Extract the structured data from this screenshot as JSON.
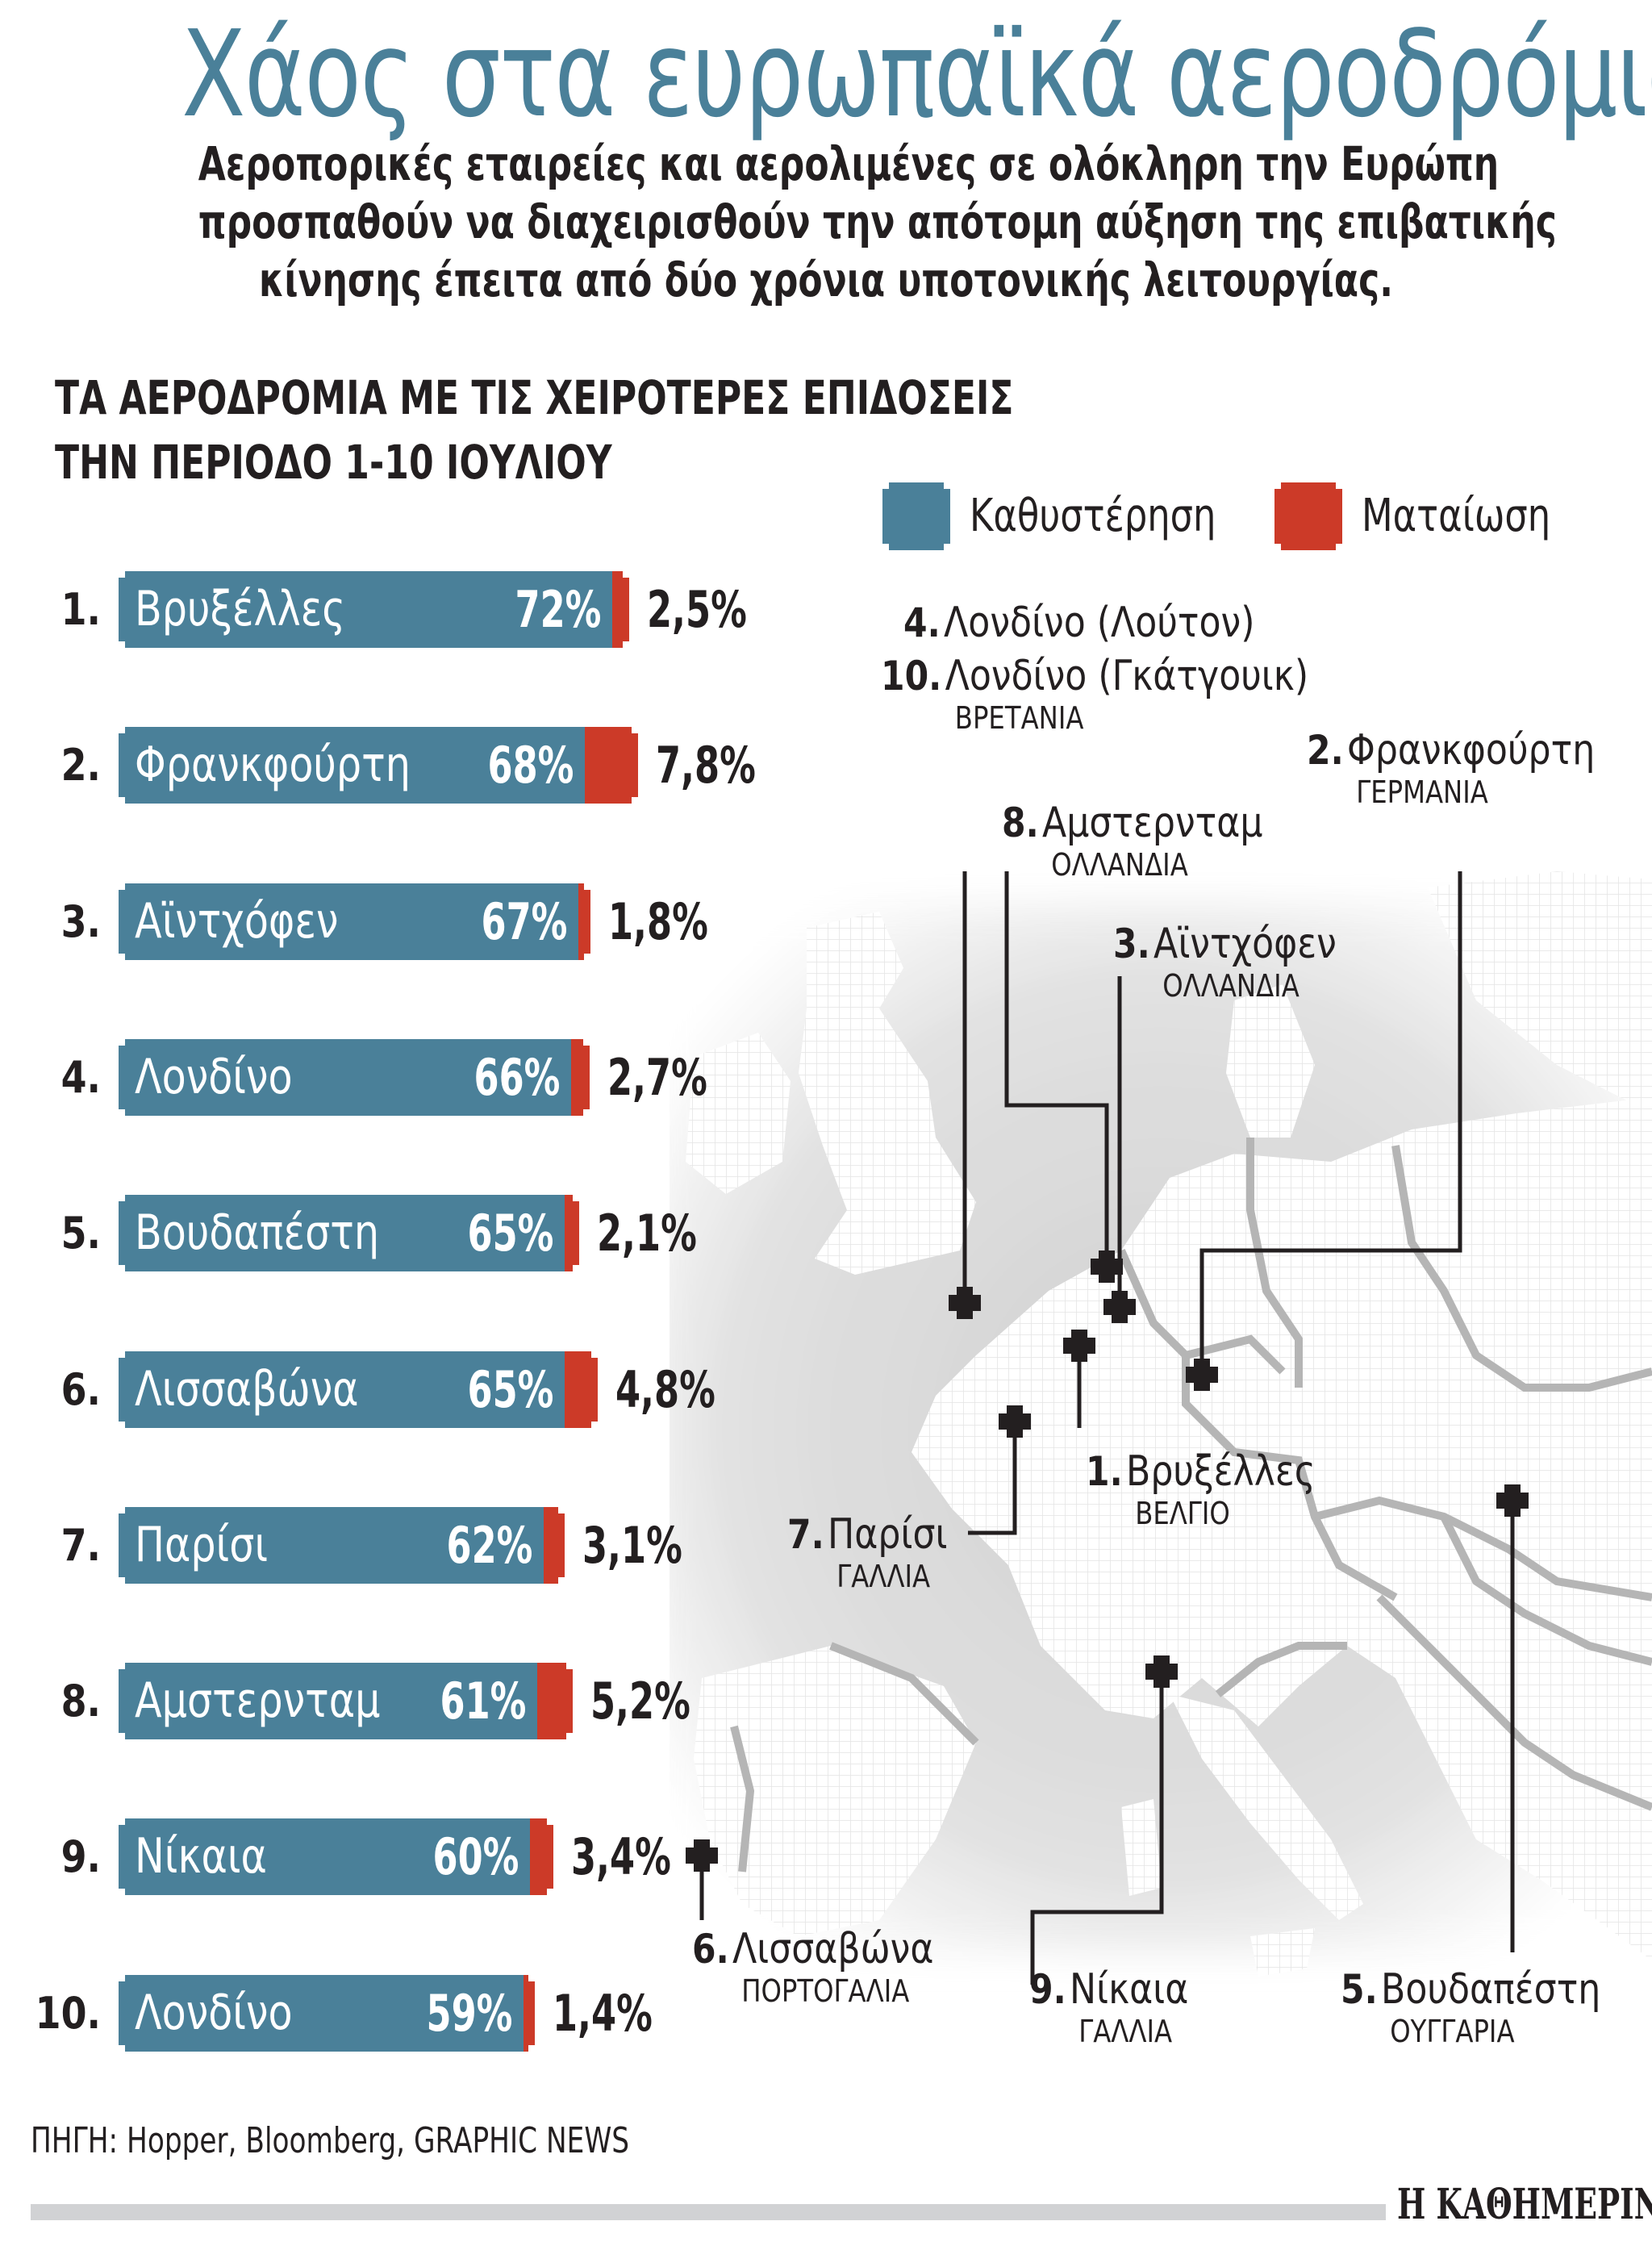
{
  "title": "Χάος στα ευρωπαϊκά αεροδρόμια",
  "subtitle": [
    "Αεροπορικές εταιρείες και αερολιμένες σε ολόκληρη την Ευρώπη",
    "προσπαθούν να διαχειρισθούν την απότομη αύξηση της επιβατικής",
    "κίνησης έπειτα από δύο χρόνια υποτονικής λειτουργίας."
  ],
  "section_title": [
    "ΤΑ ΑΕΡΟΔΡΟΜΙΑ ΜΕ ΤΙΣ ΧΕΙΡΟΤΕΡΕΣ ΕΠΙΔΟΣΕΙΣ",
    "ΤΗΝ ΠΕΡΙΟΔΟ 1-10 ΙΟΥΛΙΟΥ"
  ],
  "legend": {
    "delay": {
      "label": "Καθυστέρηση",
      "color": "#4a8099"
    },
    "cancel": {
      "label": "Ματαίωση",
      "color": "#cc3a28"
    }
  },
  "chart_data": {
    "type": "bar",
    "orientation": "horizontal",
    "stacked": true,
    "title": "ΤΑ ΑΕΡΟΔΡΟΜΙΑ ΜΕ ΤΙΣ ΧΕΙΡΟΤΕΡΕΣ ΕΠΙΔΟΣΕΙΣ ΤΗΝ ΠΕΡΙΟΔΟ 1-10 ΙΟΥΛΙΟΥ",
    "categories": [
      "Βρυξέλλες",
      "Φρανκφούρτη",
      "Αϊντχόφεν",
      "Λονδίνο",
      "Βουδαπέστη",
      "Λισσαβώνα",
      "Παρίσι",
      "Αμστερνταμ",
      "Νίκαια",
      "Λονδίνο"
    ],
    "ranks": [
      "1.",
      "2.",
      "3.",
      "4.",
      "5.",
      "6.",
      "7.",
      "8.",
      "9.",
      "10."
    ],
    "series": [
      {
        "name": "Καθυστέρηση",
        "color": "#4a8099",
        "values": [
          72,
          68,
          67,
          66,
          65,
          65,
          62,
          61,
          60,
          59
        ],
        "labels": [
          "72%",
          "68%",
          "67%",
          "66%",
          "65%",
          "65%",
          "62%",
          "61%",
          "60%",
          "59%"
        ]
      },
      {
        "name": "Ματαίωση",
        "color": "#cc3a28",
        "values": [
          2.5,
          7.8,
          1.8,
          2.7,
          2.1,
          4.8,
          3.1,
          5.2,
          3.4,
          1.4
        ],
        "labels": [
          "2,5%",
          "7,8%",
          "1,8%",
          "2,7%",
          "2,1%",
          "4,8%",
          "3,1%",
          "5,2%",
          "3,4%",
          "1,4%"
        ]
      }
    ],
    "xlabel": "",
    "ylabel": "",
    "legend_position": "top-right",
    "grid": false
  },
  "map_labels": [
    {
      "num": "4.",
      "city": "Λονδίνο (Λούτον)",
      "country": ""
    },
    {
      "num": "10.",
      "city": "Λονδίνο (Γκάτγουικ)",
      "country": "ΒΡΕΤΑΝΙΑ"
    },
    {
      "num": "2.",
      "city": "Φρανκφούρτη",
      "country": "ΓΕΡΜΑΝΙΑ"
    },
    {
      "num": "8.",
      "city": "Αμστερνταμ",
      "country": "ΟΛΛΑΝΔΙΑ"
    },
    {
      "num": "3.",
      "city": "Αϊντχόφεν",
      "country": "ΟΛΛΑΝΔΙΑ"
    },
    {
      "num": "1.",
      "city": "Βρυξέλλες",
      "country": "ΒΕΛΓΙΟ"
    },
    {
      "num": "7.",
      "city": "Παρίσι",
      "country": "ΓΑΛΛΙΑ"
    },
    {
      "num": "6.",
      "city": "Λισσαβώνα",
      "country": "ΠΟΡΤΟΓΑΛΙΑ"
    },
    {
      "num": "9.",
      "city": "Νίκαια",
      "country": "ΓΑΛΛΙΑ"
    },
    {
      "num": "5.",
      "city": "Βουδαπέστη",
      "country": "ΟΥΓΓΑΡΙΑ"
    }
  ],
  "source": "ΠΗΓΗ: Hopper, Bloomberg, GRAPHIC NEWS",
  "publisher": "Η ΚΑΘΗΜΕΡΙΝΗ"
}
